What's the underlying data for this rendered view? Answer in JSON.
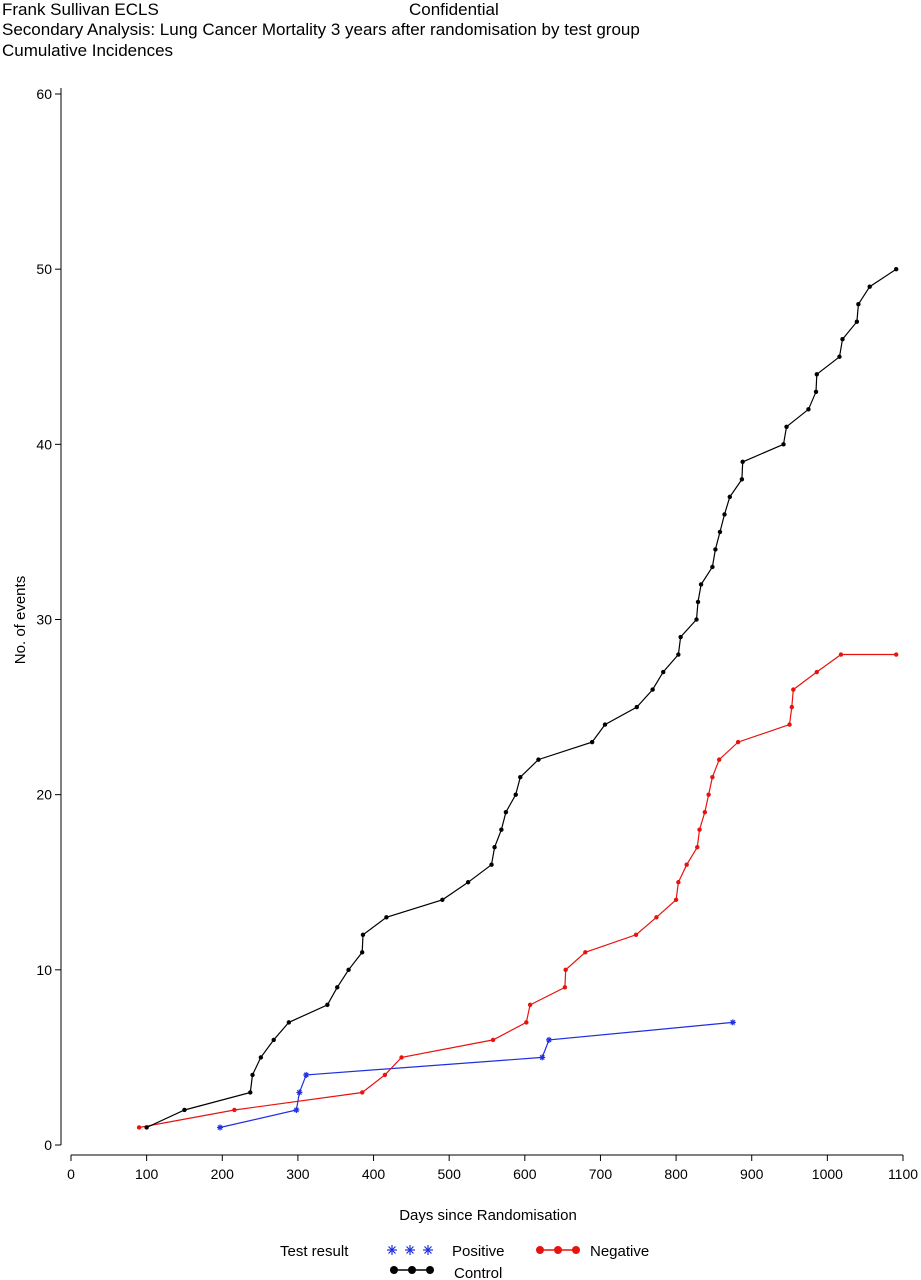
{
  "header": {
    "left": "Frank Sullivan ECLS",
    "center": "Confidential",
    "line2": "Secondary Analysis: Lung Cancer Mortality 3 years after randomisation by test group",
    "line3": "Cumulative Incidences"
  },
  "chart_data": {
    "type": "line",
    "title": "Secondary Analysis: Lung Cancer Mortality 3 years after randomisation by test group",
    "subtitle": "Cumulative Incidences",
    "xlabel": "Days since Randomisation",
    "ylabel": "No. of events",
    "xlim": [
      0,
      1100
    ],
    "ylim": [
      0,
      60
    ],
    "xticks": [
      0,
      100,
      200,
      300,
      400,
      500,
      600,
      700,
      800,
      900,
      1000,
      1100
    ],
    "yticks": [
      0,
      10,
      20,
      30,
      40,
      50,
      60
    ],
    "grid": false,
    "legend": {
      "title": "Test result",
      "placement": "bottom"
    },
    "series": [
      {
        "name": "Positive",
        "color": "#1f2fe0",
        "marker": "star",
        "x": [
          197,
          298,
          302,
          311,
          623,
          632,
          875
        ],
        "y": [
          1,
          2,
          3,
          4,
          5,
          6,
          7
        ]
      },
      {
        "name": "Negative",
        "color": "#e8130f",
        "marker": "dot",
        "x": [
          90,
          216,
          385,
          415,
          437,
          558,
          602,
          607,
          653,
          654,
          680,
          747,
          774,
          800,
          803,
          814,
          828,
          831,
          838,
          843,
          848,
          857,
          882,
          950,
          953,
          955,
          986,
          1018,
          1091
        ],
        "y": [
          1,
          2,
          3,
          4,
          5,
          6,
          7,
          8,
          9,
          10,
          11,
          12,
          13,
          14,
          15,
          16,
          17,
          18,
          19,
          20,
          21,
          22,
          23,
          24,
          25,
          26,
          27,
          28,
          28
        ]
      },
      {
        "name": "Control",
        "color": "#000000",
        "marker": "dot",
        "x": [
          100,
          150,
          237,
          240,
          251,
          268,
          288,
          339,
          352,
          367,
          385,
          386,
          417,
          491,
          525,
          556,
          560,
          569,
          575,
          588,
          594,
          618,
          689,
          706,
          748,
          769,
          783,
          803,
          806,
          827,
          829,
          833,
          848,
          852,
          858,
          864,
          871,
          887,
          888,
          942,
          946,
          975,
          985,
          986,
          1016,
          1020,
          1039,
          1041,
          1056,
          1091
        ],
        "y": [
          1,
          2,
          3,
          4,
          5,
          6,
          7,
          8,
          9,
          10,
          11,
          12,
          13,
          14,
          15,
          16,
          17,
          18,
          19,
          20,
          21,
          22,
          23,
          24,
          25,
          26,
          27,
          28,
          29,
          30,
          31,
          32,
          33,
          34,
          35,
          36,
          37,
          38,
          39,
          40,
          41,
          42,
          43,
          44,
          45,
          46,
          47,
          48,
          49,
          50
        ]
      }
    ]
  }
}
